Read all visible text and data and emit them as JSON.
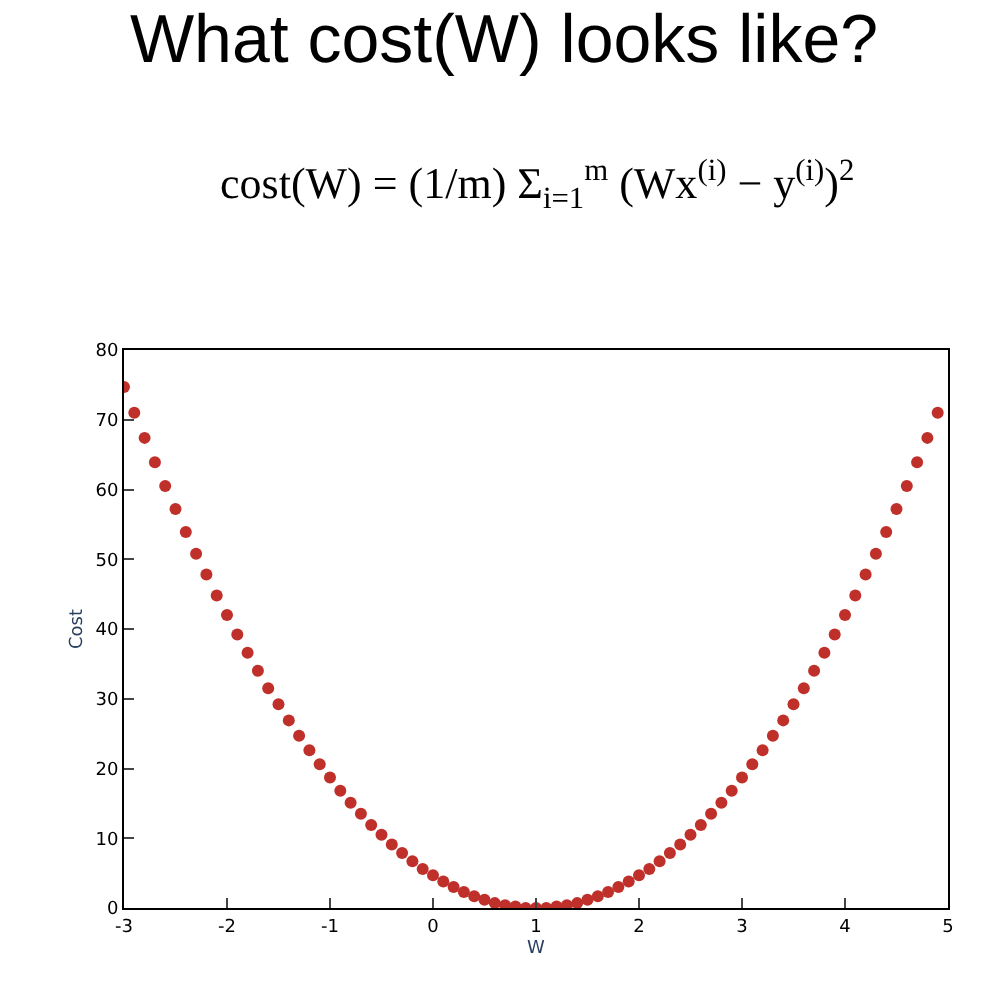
{
  "chart_data": {
    "type": "scatter",
    "title": "What cost(W) looks like?",
    "subtitle": "cost(W) = (1/m) Σ$_{i=1}$$^{m}$ (Wx$^{(i)}$ − y$^{(i)}$)$^{2}$",
    "xlabel": "W",
    "ylabel": "Cost",
    "x": [
      -3.0,
      -2.9,
      -2.8,
      -2.7,
      -2.6,
      -2.5,
      -2.4,
      -2.3,
      -2.2,
      -2.1,
      -2.0,
      -1.9,
      -1.8,
      -1.7,
      -1.6,
      -1.5,
      -1.4,
      -1.3,
      -1.2,
      -1.1,
      -1.0,
      -0.9,
      -0.8,
      -0.7,
      -0.6,
      -0.5,
      -0.4,
      -0.3,
      -0.2,
      -0.1,
      0.0,
      0.1,
      0.2,
      0.3,
      0.4,
      0.5,
      0.6,
      0.7,
      0.8,
      0.9,
      1.0,
      1.1,
      1.2,
      1.3,
      1.4,
      1.5,
      1.6,
      1.7,
      1.8,
      1.9,
      2.0,
      2.1,
      2.2,
      2.3,
      2.4,
      2.5,
      2.6,
      2.7,
      2.8,
      2.9,
      3.0,
      3.1,
      3.2,
      3.3,
      3.4,
      3.5,
      3.6,
      3.7,
      3.8,
      3.9,
      4.0,
      4.1,
      4.2,
      4.3,
      4.4,
      4.5,
      4.6,
      4.7,
      4.8,
      4.9
    ],
    "series": [
      {
        "color": "#c0302a",
        "values": [
          74.7,
          71.0,
          67.4,
          63.9,
          60.5,
          57.2,
          53.9,
          50.8,
          47.8,
          44.8,
          42.0,
          39.2,
          36.6,
          34.0,
          31.5,
          29.2,
          26.9,
          24.7,
          22.6,
          20.6,
          18.7,
          16.8,
          15.1,
          13.5,
          11.9,
          10.5,
          9.1,
          7.9,
          6.7,
          5.6,
          4.7,
          3.8,
          3.0,
          2.3,
          1.7,
          1.2,
          0.7,
          0.4,
          0.2,
          0,
          0,
          0,
          0.2,
          0.4,
          0.7,
          1.2,
          1.7,
          2.3,
          3.0,
          3.8,
          4.7,
          5.6,
          6.7,
          7.9,
          9.1,
          10.5,
          11.9,
          13.5,
          15.1,
          16.8,
          18.7,
          20.6,
          22.6,
          24.7,
          26.9,
          29.2,
          31.5,
          34.0,
          36.6,
          39.2,
          42.0,
          44.8,
          47.8,
          50.8,
          53.9,
          57.2,
          60.5,
          63.9,
          67.4,
          71.0
        ]
      }
    ],
    "xlim": [
      -3,
      5
    ],
    "xticks": [
      -3,
      -2,
      -1,
      0,
      1,
      2,
      3,
      4,
      5
    ],
    "ylim": [
      0,
      80
    ],
    "yticks": [
      0,
      10,
      20,
      30,
      40,
      50,
      60,
      70,
      80
    ],
    "marker": "circle"
  }
}
